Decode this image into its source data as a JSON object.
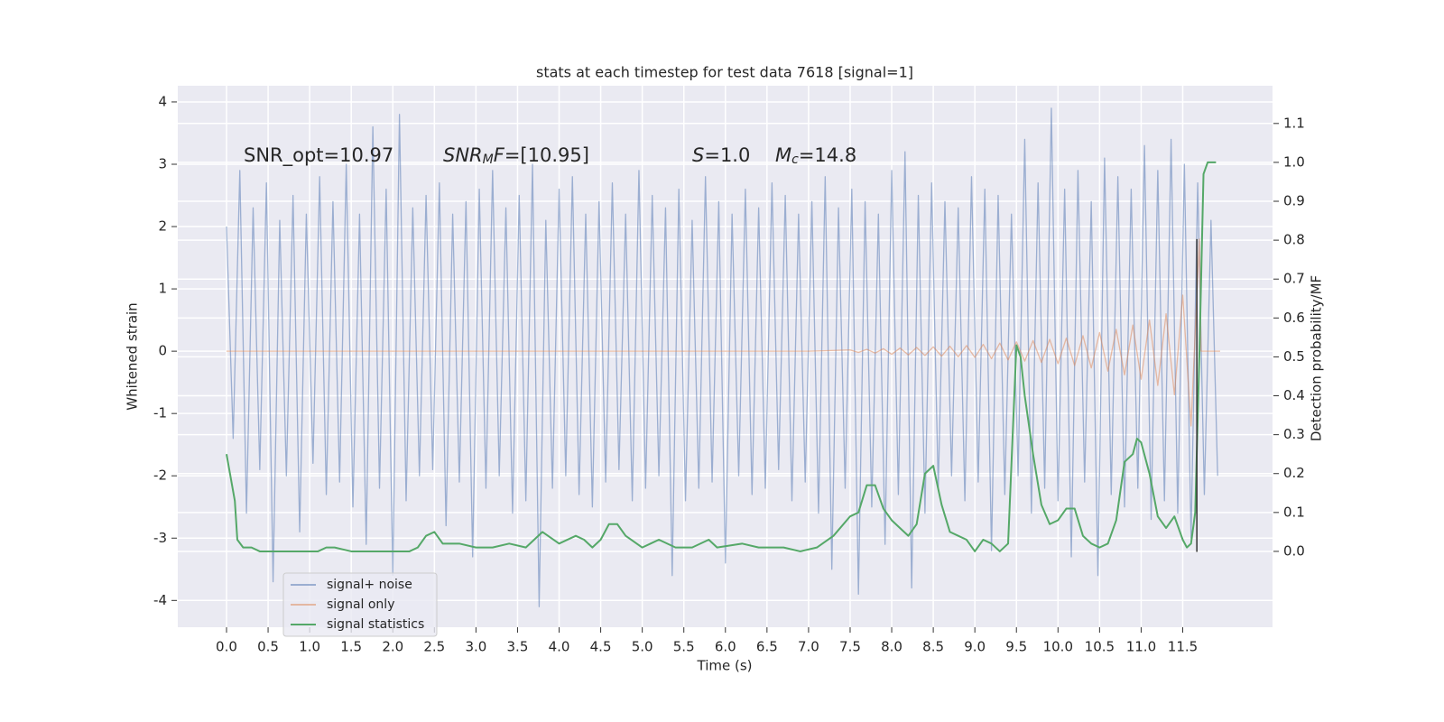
{
  "chart_data": {
    "type": "line",
    "title": "stats at each timestep for test data 7618 [signal=1]",
    "xlabel": "Time (s)",
    "ylabel": "Whitened strain",
    "y2label": "Detection probability/MF",
    "annotations": [
      [
        "SNR_opt=10.97"
      ],
      [
        "SNR",
        "M",
        "F",
        "=[10.95]"
      ],
      [
        "S",
        "=1.0"
      ],
      [
        "M",
        "c",
        "=14.8"
      ]
    ],
    "xlim": [
      -0.586,
      12.58
    ],
    "ylim": [
      -4.43,
      4.26
    ],
    "y2lim": [
      -0.195,
      1.197
    ],
    "xticks": [
      {
        "value": 0,
        "label": "0.0"
      },
      0.5,
      {
        "value": 1,
        "label": "1.0"
      },
      1.5,
      {
        "value": 2,
        "label": "2.0"
      },
      2.5,
      {
        "value": 3,
        "label": "3.0"
      },
      3.5,
      {
        "value": 4,
        "label": "4.0"
      },
      4.5,
      {
        "value": 5,
        "label": "5.0"
      },
      5.5,
      {
        "value": 6,
        "label": "6.0"
      },
      6.5,
      {
        "value": 7,
        "label": "7.0"
      },
      7.5,
      {
        "value": 8,
        "label": "8.0"
      },
      8.5,
      {
        "value": 9,
        "label": "9.0"
      },
      9.5,
      {
        "value": 10,
        "label": "10.0"
      },
      10.5,
      {
        "value": 11,
        "label": "11.0"
      },
      11.5
    ],
    "yticks": [
      -4,
      -3,
      -2,
      -1,
      0,
      1,
      2,
      3,
      4
    ],
    "y2ticks": [
      {
        "value": 0,
        "label": "0.0"
      },
      0.1,
      0.2,
      0.3,
      0.4,
      0.5,
      0.6,
      0.7,
      0.8,
      0.9,
      {
        "value": 1,
        "label": "1.0"
      },
      1.1
    ],
    "grid": true,
    "legend": "lower left",
    "series": [
      {
        "name": "signal+ noise",
        "color": "#4c72b0",
        "alpha": 0.5,
        "x": [
          0,
          0.08,
          0.16,
          0.24,
          0.32,
          0.4,
          0.48,
          0.56,
          0.64,
          0.72,
          0.8,
          0.88,
          0.96,
          1.04,
          1.12,
          1.2,
          1.28,
          1.36,
          1.44,
          1.52,
          1.6,
          1.68,
          1.76,
          1.84,
          1.92,
          2,
          2.08,
          2.16,
          2.24,
          2.32,
          2.4,
          2.48,
          2.56,
          2.64,
          2.72,
          2.8,
          2.88,
          2.96,
          3.04,
          3.12,
          3.2,
          3.28,
          3.36,
          3.44,
          3.52,
          3.6,
          3.68,
          3.76,
          3.84,
          3.92,
          4,
          4.08,
          4.16,
          4.24,
          4.32,
          4.4,
          4.48,
          4.56,
          4.64,
          4.72,
          4.8,
          4.88,
          4.96,
          5.04,
          5.12,
          5.2,
          5.28,
          5.36,
          5.44,
          5.52,
          5.6,
          5.68,
          5.76,
          5.84,
          5.92,
          6,
          6.08,
          6.16,
          6.24,
          6.32,
          6.4,
          6.48,
          6.56,
          6.64,
          6.72,
          6.8,
          6.88,
          6.96,
          7.04,
          7.12,
          7.2,
          7.28,
          7.36,
          7.44,
          7.52,
          7.6,
          7.68,
          7.76,
          7.84,
          7.92,
          8,
          8.08,
          8.16,
          8.24,
          8.32,
          8.4,
          8.48,
          8.56,
          8.64,
          8.72,
          8.8,
          8.88,
          8.96,
          9.04,
          9.12,
          9.2,
          9.28,
          9.36,
          9.44,
          9.52,
          9.6,
          9.68,
          9.76,
          9.84,
          9.92,
          10,
          10.08,
          10.16,
          10.24,
          10.32,
          10.4,
          10.48,
          10.56,
          10.64,
          10.72,
          10.8,
          10.88,
          10.96,
          11.04,
          11.12,
          11.2,
          11.28,
          11.36,
          11.44,
          11.52,
          11.6,
          11.68,
          11.76,
          11.84,
          11.92
        ],
        "values": [
          2.0,
          -1.4,
          2.9,
          -2.6,
          2.3,
          -1.9,
          2.7,
          -3.7,
          2.1,
          -2.0,
          2.5,
          -2.9,
          2.2,
          -1.8,
          2.8,
          -2.3,
          2.4,
          -2.1,
          3.0,
          -2.5,
          2.2,
          -3.1,
          3.6,
          -2.2,
          2.6,
          -3.6,
          3.8,
          -2.4,
          2.3,
          -2.0,
          2.5,
          -1.9,
          2.7,
          -2.8,
          2.2,
          -2.1,
          2.4,
          -3.3,
          2.6,
          -2.2,
          2.9,
          -2.0,
          2.3,
          -2.6,
          2.5,
          -2.4,
          3.0,
          -4.1,
          2.1,
          -2.2,
          2.6,
          -2.0,
          2.8,
          -2.3,
          2.2,
          -2.5,
          2.4,
          -2.1,
          2.7,
          -1.9,
          2.2,
          -2.4,
          2.9,
          -2.2,
          2.5,
          -2.0,
          2.3,
          -3.6,
          2.6,
          -2.4,
          2.1,
          -2.2,
          2.8,
          -2.1,
          2.4,
          -3.4,
          2.2,
          -2.0,
          2.6,
          -2.3,
          2.3,
          -2.2,
          2.7,
          -1.9,
          2.5,
          -2.4,
          2.2,
          -2.1,
          2.4,
          -2.6,
          2.8,
          -3.5,
          2.3,
          -2.2,
          2.6,
          -3.9,
          2.4,
          -2.5,
          2.2,
          -3.1,
          2.9,
          -2.3,
          3.2,
          -3.8,
          2.5,
          -2.6,
          2.7,
          -2.2,
          2.4,
          -2.0,
          2.3,
          -2.4,
          2.8,
          -2.1,
          2.6,
          -3.2,
          2.5,
          -2.3,
          2.2,
          -2.0,
          3.4,
          -2.6,
          2.7,
          -2.2,
          3.9,
          -2.4,
          2.6,
          -3.3,
          2.9,
          -2.1,
          2.4,
          -3.6,
          3.1,
          -2.3,
          2.8,
          -2.5,
          2.6,
          -2.2,
          3.3,
          -2.7,
          2.9,
          -2.4,
          3.4,
          -2.6,
          3.0,
          -3.0,
          2.7,
          -2.3,
          2.1,
          -2.0
        ]
      },
      {
        "name": "signal only",
        "color": "#dd8452",
        "alpha": 0.5,
        "x": [
          0,
          7.0,
          7.5,
          7.6,
          7.7,
          7.8,
          7.9,
          8.0,
          8.1,
          8.2,
          8.3,
          8.4,
          8.5,
          8.6,
          8.7,
          8.8,
          8.9,
          9.0,
          9.1,
          9.2,
          9.3,
          9.4,
          9.5,
          9.6,
          9.7,
          9.8,
          9.9,
          10.0,
          10.1,
          10.2,
          10.3,
          10.4,
          10.5,
          10.6,
          10.7,
          10.8,
          10.9,
          11.0,
          11.1,
          11.2,
          11.3,
          11.4,
          11.5,
          11.6,
          11.7,
          11.72,
          11.95
        ],
        "values": [
          0,
          0,
          0.02,
          -0.02,
          0.03,
          -0.03,
          0.04,
          -0.05,
          0.05,
          -0.06,
          0.06,
          -0.07,
          0.07,
          -0.08,
          0.08,
          -0.09,
          0.09,
          -0.1,
          0.11,
          -0.12,
          0.13,
          -0.14,
          0.15,
          -0.16,
          0.17,
          -0.18,
          0.19,
          -0.2,
          0.21,
          -0.23,
          0.25,
          -0.27,
          0.3,
          -0.32,
          0.35,
          -0.38,
          0.42,
          -0.45,
          0.5,
          -0.55,
          0.6,
          -0.7,
          0.9,
          -1.2,
          1.8,
          0,
          0
        ]
      },
      {
        "name": "signal statistics",
        "color": "#55a868",
        "axis": "y2",
        "x": [
          0,
          0.1,
          0.13,
          0.2,
          0.3,
          0.4,
          0.6,
          0.9,
          1.1,
          1.2,
          1.3,
          1.5,
          1.8,
          2.0,
          2.2,
          2.3,
          2.4,
          2.5,
          2.6,
          2.8,
          3.0,
          3.2,
          3.4,
          3.6,
          3.7,
          3.8,
          4.0,
          4.2,
          4.3,
          4.4,
          4.5,
          4.6,
          4.7,
          4.8,
          5.0,
          5.1,
          5.2,
          5.4,
          5.6,
          5.8,
          5.9,
          6.2,
          6.4,
          6.7,
          6.9,
          7.1,
          7.3,
          7.5,
          7.6,
          7.7,
          7.8,
          7.9,
          8.0,
          8.1,
          8.2,
          8.3,
          8.4,
          8.5,
          8.6,
          8.7,
          8.8,
          8.9,
          9.0,
          9.1,
          9.2,
          9.3,
          9.4,
          9.5,
          9.55,
          9.6,
          9.7,
          9.8,
          9.9,
          10.0,
          10.1,
          10.2,
          10.3,
          10.4,
          10.5,
          10.6,
          10.7,
          10.8,
          10.9,
          10.95,
          11.0,
          11.1,
          11.2,
          11.3,
          11.4,
          11.5,
          11.55,
          11.6,
          11.65,
          11.7,
          11.75,
          11.8,
          11.9
        ],
        "values": [
          0.25,
          0.13,
          0.03,
          0.01,
          0.01,
          0.0,
          0.0,
          0.0,
          0.0,
          0.01,
          0.01,
          0.0,
          0.0,
          0.0,
          0.0,
          0.01,
          0.04,
          0.05,
          0.02,
          0.02,
          0.01,
          0.01,
          0.02,
          0.01,
          0.03,
          0.05,
          0.02,
          0.04,
          0.03,
          0.01,
          0.03,
          0.07,
          0.07,
          0.04,
          0.01,
          0.02,
          0.03,
          0.01,
          0.01,
          0.03,
          0.01,
          0.02,
          0.01,
          0.01,
          0.0,
          0.01,
          0.04,
          0.09,
          0.1,
          0.17,
          0.17,
          0.11,
          0.08,
          0.06,
          0.04,
          0.07,
          0.2,
          0.22,
          0.12,
          0.05,
          0.04,
          0.03,
          0.0,
          0.03,
          0.02,
          0.0,
          0.02,
          0.53,
          0.5,
          0.4,
          0.25,
          0.12,
          0.07,
          0.08,
          0.11,
          0.11,
          0.04,
          0.02,
          0.01,
          0.02,
          0.08,
          0.23,
          0.25,
          0.29,
          0.28,
          0.2,
          0.09,
          0.06,
          0.09,
          0.03,
          0.01,
          0.02,
          0.1,
          0.5,
          0.97,
          1.0,
          1.0
        ]
      }
    ],
    "vline": {
      "x": 11.67,
      "y": [
        -3.22,
        1.8
      ],
      "color": "#333333"
    }
  }
}
